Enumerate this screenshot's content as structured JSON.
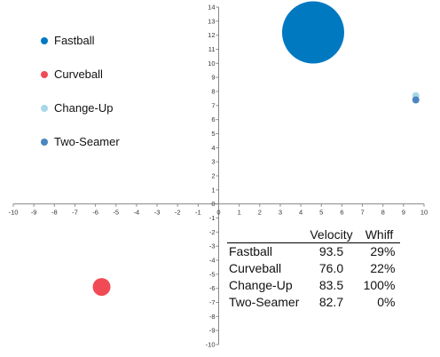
{
  "chart_data": {
    "type": "scatter",
    "subtype": "bubble",
    "xlim": [
      -10,
      10
    ],
    "ylim": [
      -10,
      14
    ],
    "x_ticks": [
      -10,
      -9,
      -8,
      -7,
      -6,
      -5,
      -4,
      -3,
      -2,
      -1,
      0,
      1,
      2,
      3,
      4,
      5,
      6,
      7,
      8,
      9,
      10
    ],
    "y_ticks": [
      -10,
      -9,
      -8,
      -7,
      -6,
      -5,
      -4,
      -3,
      -2,
      -1,
      0,
      1,
      2,
      3,
      4,
      5,
      6,
      7,
      8,
      9,
      10,
      11,
      12,
      13,
      14
    ],
    "grid": false,
    "legend_position": "top-left",
    "series": [
      {
        "name": "Fastball",
        "color": "#0079C1",
        "x": 4.6,
        "y": 12.2,
        "size": 29
      },
      {
        "name": "Curveball",
        "color": "#F04B55",
        "x": -5.7,
        "y": -5.9,
        "size": 22
      },
      {
        "name": "Change-Up",
        "color": "#A8D8E8",
        "x": 9.6,
        "y": 7.7,
        "size": 100
      },
      {
        "name": "Two-Seamer",
        "color": "#4A86BF",
        "x": 9.6,
        "y": 7.4,
        "size": 0
      }
    ]
  },
  "table": {
    "headers": [
      "",
      "Velocity",
      "Whiff"
    ],
    "rows": [
      {
        "pitch": "Fastball",
        "velocity": "93.5",
        "whiff": "29%"
      },
      {
        "pitch": "Curveball",
        "velocity": "76.0",
        "whiff": "22%"
      },
      {
        "pitch": "Change-Up",
        "velocity": "83.5",
        "whiff": "100%"
      },
      {
        "pitch": "Two-Seamer",
        "velocity": "82.7",
        "whiff": "0%"
      }
    ]
  }
}
